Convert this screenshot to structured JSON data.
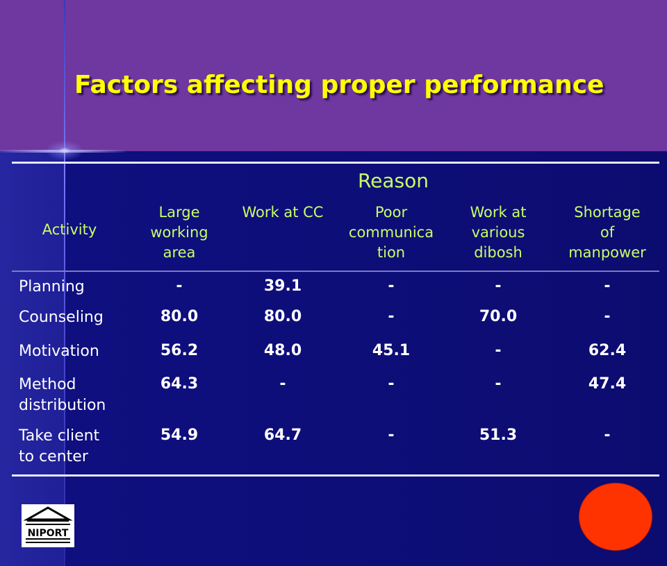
{
  "title": "Factors affecting proper performance",
  "table": {
    "group_header": "Reason",
    "activity_header": "Activity",
    "columns": [
      [
        "Large",
        "working",
        "area"
      ],
      [
        "Work at CC"
      ],
      [
        "Poor",
        "communica",
        "tion"
      ],
      [
        "Work at",
        "various",
        "dibosh"
      ],
      [
        "Shortage",
        "of",
        "manpower"
      ]
    ],
    "rows": [
      {
        "label": [
          "Planning"
        ],
        "values": [
          "-",
          "39.1",
          "-",
          "-",
          "-"
        ]
      },
      {
        "label": [
          "Counseling"
        ],
        "values": [
          "80.0",
          "80.0",
          "-",
          "70.0",
          "-"
        ]
      },
      {
        "label": [
          "Motivation"
        ],
        "values": [
          "56.2",
          "48.0",
          "45.1",
          "-",
          "62.4"
        ]
      },
      {
        "label": [
          "Method",
          "distribution"
        ],
        "values": [
          "64.3",
          "-",
          "-",
          "-",
          "47.4"
        ]
      },
      {
        "label": [
          "Take client",
          "to center"
        ],
        "values": [
          "54.9",
          "64.7",
          "-",
          "51.3",
          "-"
        ]
      }
    ]
  },
  "logo": {
    "text": "NIPORT"
  },
  "colors": {
    "title": "#ffff00",
    "header_text": "#c8ff66",
    "top_band": "#6f37a0",
    "background": "#0c0c70",
    "red_circle": "#ff3300"
  }
}
